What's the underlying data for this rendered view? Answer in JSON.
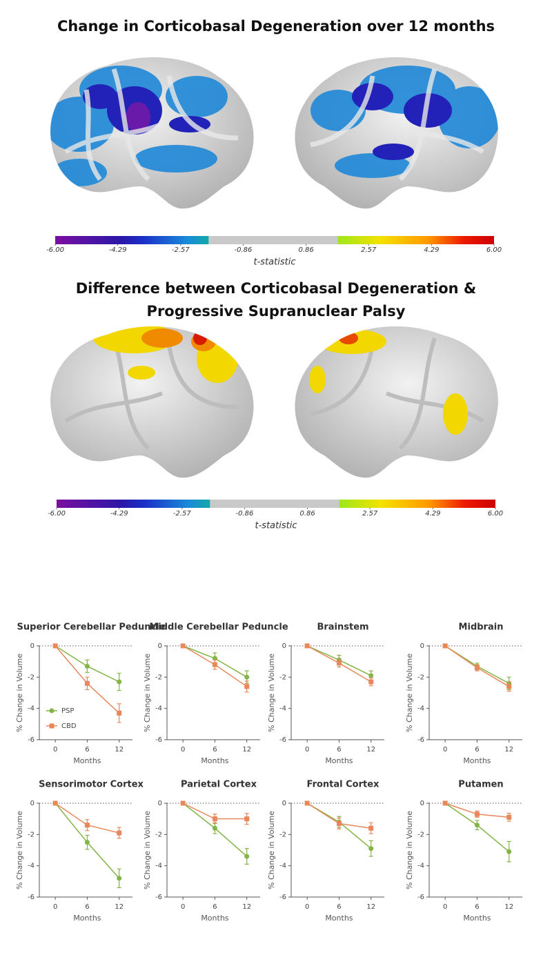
{
  "panels": [
    {
      "title": "Change in Corticobasal Degeneration over 12 months",
      "colorbar_label": "t-statistic",
      "lim": [
        -6,
        6
      ],
      "ticks": [
        {
          "value": -6,
          "label": "-6.00"
        },
        -4.29,
        -2.57,
        -0.86,
        0.86,
        2.57,
        4.29,
        {
          "value": 6,
          "label": "6.00"
        }
      ]
    },
    {
      "title": "Difference between Corticobasal Degeneration & Progressive Supranuclear Palsy",
      "colorbar_label": "t-statistic",
      "lim": [
        -6,
        6
      ],
      "ticks": [
        {
          "value": -6,
          "label": "-6.00"
        },
        -4.29,
        -2.57,
        -0.86,
        0.86,
        2.57,
        4.29,
        {
          "value": 6,
          "label": "6.00"
        }
      ]
    }
  ],
  "chart_data": [
    {
      "type": "line",
      "title": "Superior Cerebellar Peduncle",
      "x": [
        0,
        6,
        12
      ],
      "xlim": [
        -3,
        14.5
      ],
      "xticks": [
        0,
        6,
        12
      ],
      "ylim": [
        -6,
        0
      ],
      "yticks": [
        0,
        -2,
        -4,
        -6
      ],
      "xlabel": "Months",
      "ylabel": "% Change in Volume",
      "legend": "lower left",
      "series": [
        {
          "name": "PSP",
          "color": "#82b446",
          "marker": "circle",
          "values": [
            0,
            -1.3,
            -2.3
          ],
          "errors": [
            0,
            0.4,
            0.55
          ]
        },
        {
          "name": "CBD",
          "color": "#e8875a",
          "marker": "square",
          "values": [
            0,
            -2.4,
            -4.3
          ],
          "errors": [
            0,
            0.4,
            0.6
          ]
        }
      ]
    },
    {
      "type": "line",
      "title": "Middle Cerebellar Peduncle",
      "x": [
        0,
        6,
        12
      ],
      "xlim": [
        -3,
        14.5
      ],
      "xticks": [
        0,
        6,
        12
      ],
      "ylim": [
        -6,
        0
      ],
      "yticks": [
        0,
        -2,
        -4,
        -6
      ],
      "xlabel": "Months",
      "ylabel": "% Change in Volume",
      "series": [
        {
          "color": "#82b446",
          "marker": "circle",
          "values": [
            0,
            -0.8,
            -2.0
          ],
          "errors": [
            0,
            0.35,
            0.4
          ]
        },
        {
          "color": "#e8875a",
          "marker": "square",
          "values": [
            0,
            -1.2,
            -2.6
          ],
          "errors": [
            0,
            0.3,
            0.35
          ]
        }
      ]
    },
    {
      "type": "line",
      "title": "Brainstem",
      "x": [
        0,
        6,
        12
      ],
      "xlim": [
        -3,
        14.5
      ],
      "xticks": [
        0,
        6,
        12
      ],
      "ylim": [
        -6,
        0
      ],
      "yticks": [
        0,
        -2,
        -4,
        -6
      ],
      "xlabel": "Months",
      "ylabel": "% Change in Volume",
      "series": [
        {
          "color": "#82b446",
          "marker": "circle",
          "values": [
            0,
            -0.9,
            -1.9
          ],
          "errors": [
            0,
            0.3,
            0.3
          ]
        },
        {
          "color": "#e8875a",
          "marker": "square",
          "values": [
            0,
            -1.1,
            -2.3
          ],
          "errors": [
            0,
            0.25,
            0.25
          ]
        }
      ]
    },
    {
      "type": "line",
      "title": "Midbrain",
      "x": [
        0,
        6,
        12
      ],
      "xlim": [
        -3,
        14.5
      ],
      "xticks": [
        0,
        6,
        12
      ],
      "ylim": [
        -6,
        0
      ],
      "yticks": [
        0,
        -2,
        -4,
        -6
      ],
      "xlabel": "Months",
      "ylabel": "% Change in Volume",
      "series": [
        {
          "color": "#82b446",
          "marker": "circle",
          "values": [
            0,
            -1.3,
            -2.4
          ],
          "errors": [
            0,
            0.2,
            0.4
          ]
        },
        {
          "color": "#e8875a",
          "marker": "square",
          "values": [
            0,
            -1.4,
            -2.6
          ],
          "errors": [
            0,
            0.2,
            0.3
          ]
        }
      ]
    },
    {
      "type": "line",
      "title": "Sensorimotor Cortex",
      "x": [
        0,
        6,
        12
      ],
      "xlim": [
        -3,
        14.5
      ],
      "xticks": [
        0,
        6,
        12
      ],
      "ylim": [
        -6,
        0
      ],
      "yticks": [
        0,
        -2,
        -4,
        -6
      ],
      "xlabel": "Months",
      "ylabel": "% Change in Volume",
      "series": [
        {
          "color": "#82b446",
          "marker": "circle",
          "values": [
            0,
            -2.5,
            -4.8
          ],
          "errors": [
            0,
            0.45,
            0.6
          ]
        },
        {
          "color": "#e8875a",
          "marker": "square",
          "values": [
            0,
            -1.4,
            -1.9
          ],
          "errors": [
            0,
            0.35,
            0.35
          ]
        }
      ]
    },
    {
      "type": "line",
      "title": "Parietal Cortex",
      "x": [
        0,
        6,
        12
      ],
      "xlim": [
        -3,
        14.5
      ],
      "xticks": [
        0,
        6,
        12
      ],
      "ylim": [
        -6,
        0
      ],
      "yticks": [
        0,
        -2,
        -4,
        -6
      ],
      "xlabel": "Months",
      "ylabel": "% Change in Volume",
      "series": [
        {
          "color": "#82b446",
          "marker": "circle",
          "values": [
            0,
            -1.6,
            -3.4
          ],
          "errors": [
            0,
            0.35,
            0.5
          ]
        },
        {
          "color": "#e8875a",
          "marker": "square",
          "values": [
            0,
            -1.0,
            -1.0
          ],
          "errors": [
            0,
            0.3,
            0.35
          ]
        }
      ]
    },
    {
      "type": "line",
      "title": "Frontal Cortex",
      "x": [
        0,
        6,
        12
      ],
      "xlim": [
        -3,
        14.5
      ],
      "xticks": [
        0,
        6,
        12
      ],
      "ylim": [
        -6,
        0
      ],
      "yticks": [
        0,
        -2,
        -4,
        -6
      ],
      "xlabel": "Months",
      "ylabel": "% Change in Volume",
      "series": [
        {
          "color": "#82b446",
          "marker": "circle",
          "values": [
            0,
            -1.2,
            -2.9
          ],
          "errors": [
            0,
            0.35,
            0.5
          ]
        },
        {
          "color": "#e8875a",
          "marker": "square",
          "values": [
            0,
            -1.3,
            -1.6
          ],
          "errors": [
            0,
            0.35,
            0.35
          ]
        }
      ]
    },
    {
      "type": "line",
      "title": "Putamen",
      "x": [
        0,
        6,
        12
      ],
      "xlim": [
        -3,
        14.5
      ],
      "xticks": [
        0,
        6,
        12
      ],
      "ylim": [
        -6,
        0
      ],
      "yticks": [
        0,
        -2,
        -4,
        -6
      ],
      "xlabel": "Months",
      "ylabel": "% Change in Volume",
      "series": [
        {
          "color": "#82b446",
          "marker": "circle",
          "values": [
            0,
            -1.4,
            -3.1
          ],
          "errors": [
            0,
            0.3,
            0.65
          ]
        },
        {
          "color": "#e8875a",
          "marker": "square",
          "values": [
            0,
            -0.7,
            -0.9
          ],
          "errors": [
            0,
            0.2,
            0.25
          ]
        }
      ]
    }
  ]
}
